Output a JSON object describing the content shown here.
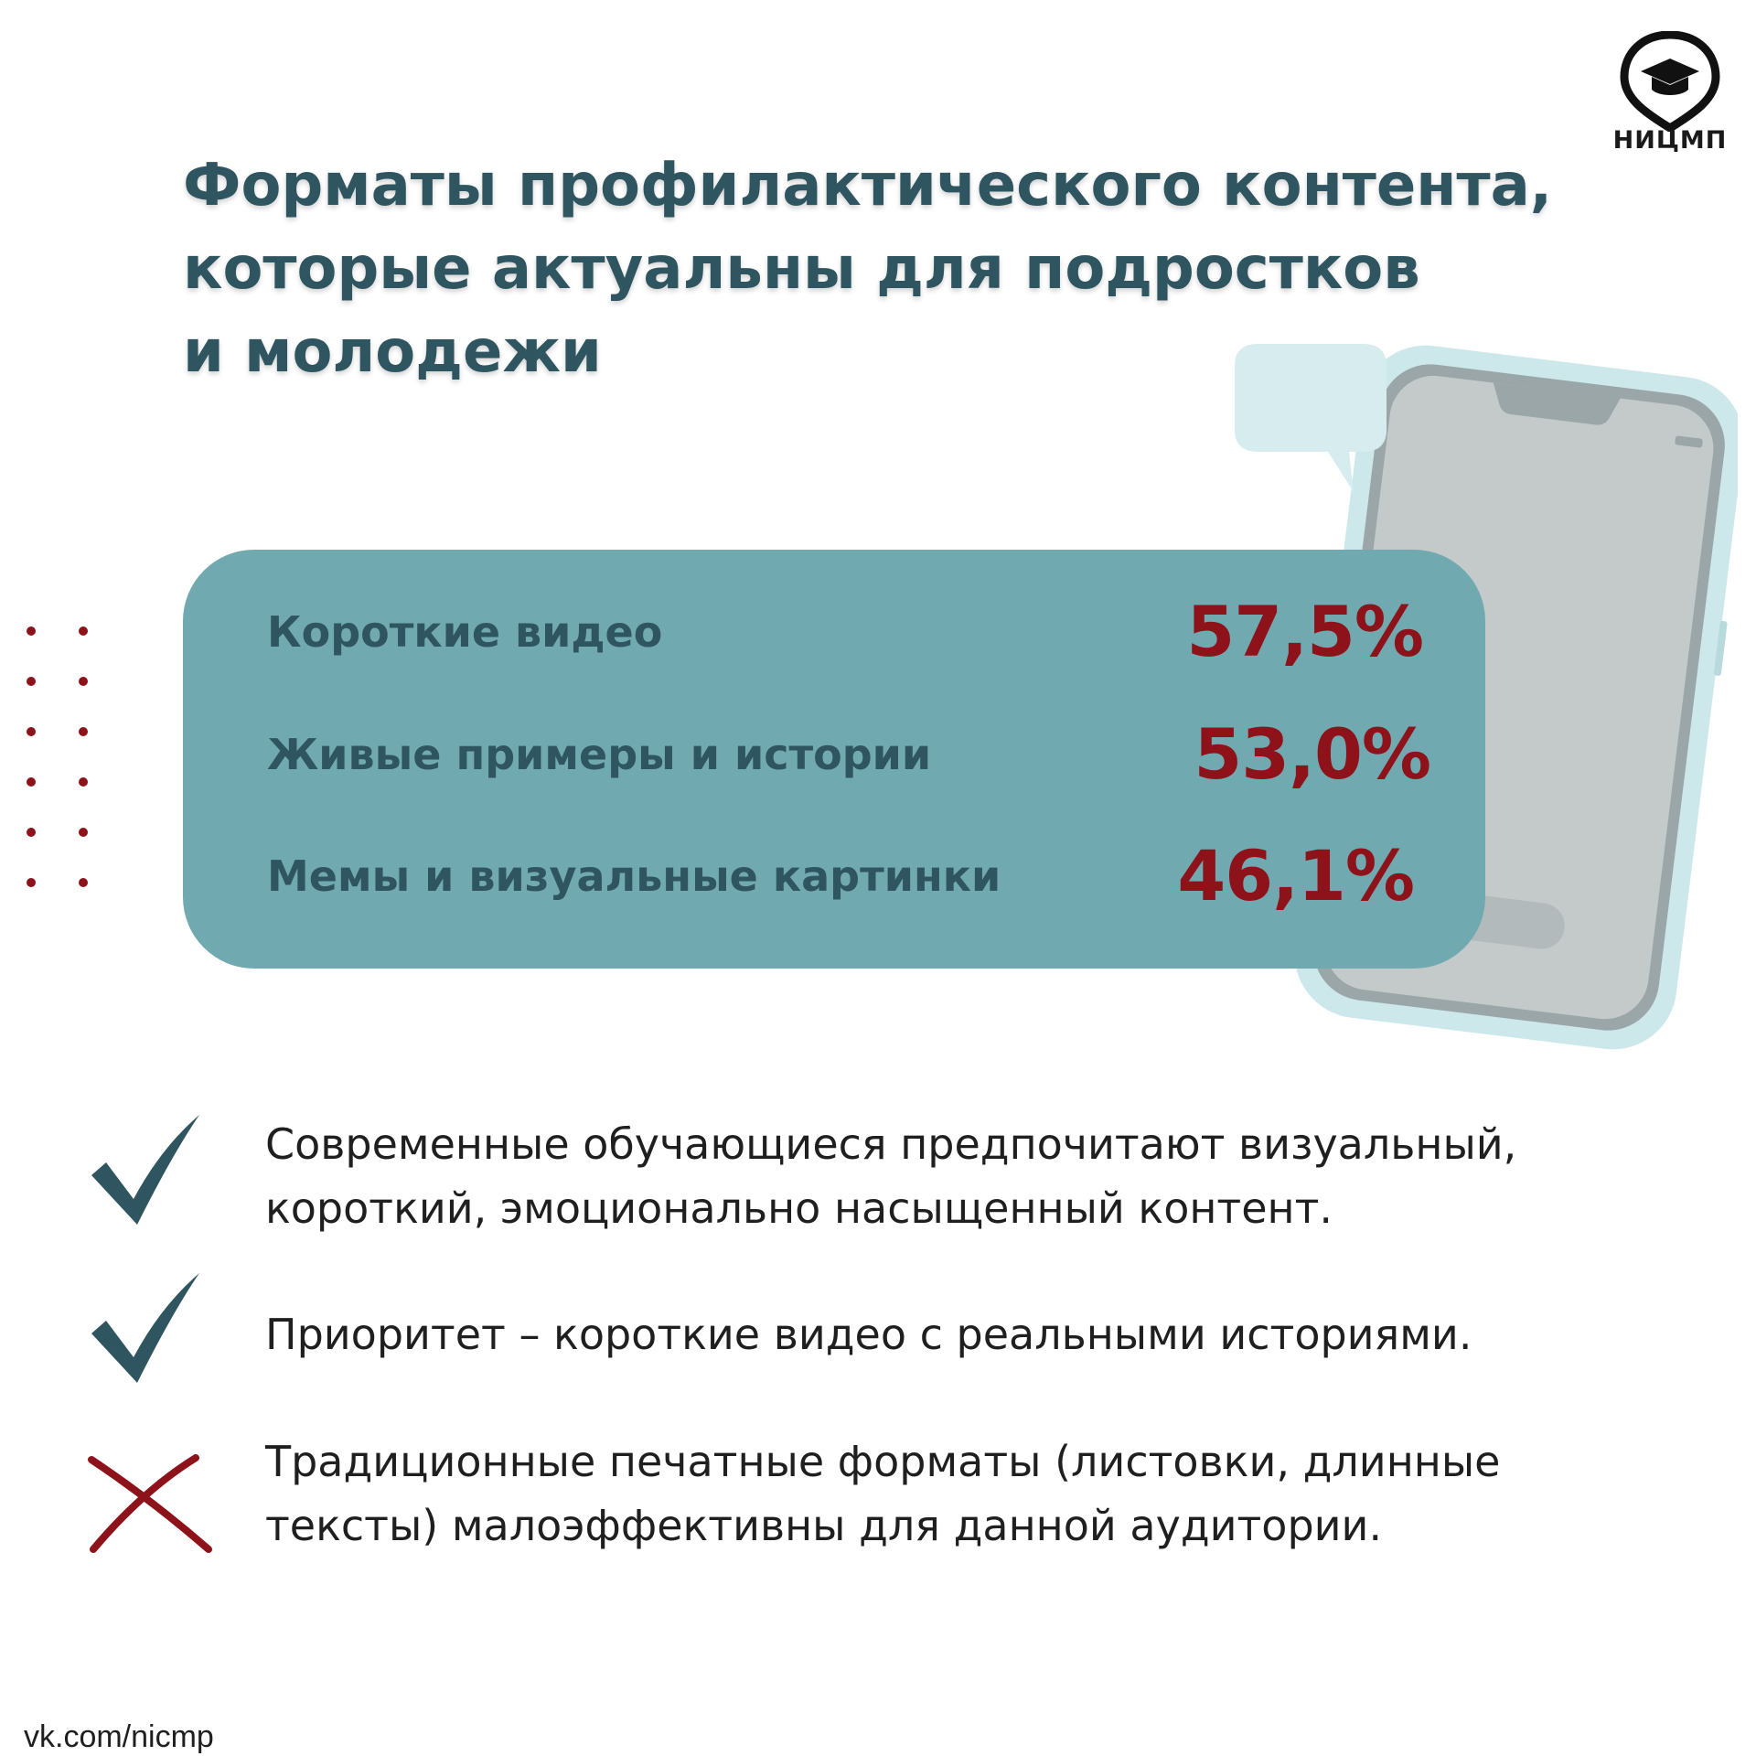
{
  "logo": {
    "text": "НИЦМП",
    "icon": "graduation-cap-pin-icon"
  },
  "title_lines": [
    "Форматы профилактического контента,",
    "которые актуальны для подростков",
    "и молодежи"
  ],
  "stats": [
    {
      "label": "Короткие видео",
      "value": "57,5%"
    },
    {
      "label": "Живые примеры и истории",
      "value": "53,0%"
    },
    {
      "label": "Мемы и визуальные картинки",
      "value": "46,1%"
    }
  ],
  "findings": [
    {
      "icon": "check-icon",
      "lines": [
        "Современные обучающиеся предпочитают визуальный,",
        "короткий, эмоционально насыщенный контент."
      ]
    },
    {
      "icon": "check-icon",
      "lines": [
        "Приоритет – короткие видео с реальными историями."
      ]
    },
    {
      "icon": "cross-icon",
      "lines": [
        "Традиционные печатные форматы (листовки, длинные",
        "тексты) малоэффективны для данной аудитории."
      ]
    }
  ],
  "colors": {
    "title": "#2f5560",
    "card_bg": "#71a9b1",
    "accent_red": "#8d1219",
    "check": "#2f5560"
  },
  "footer": "vk.com/nicmp"
}
